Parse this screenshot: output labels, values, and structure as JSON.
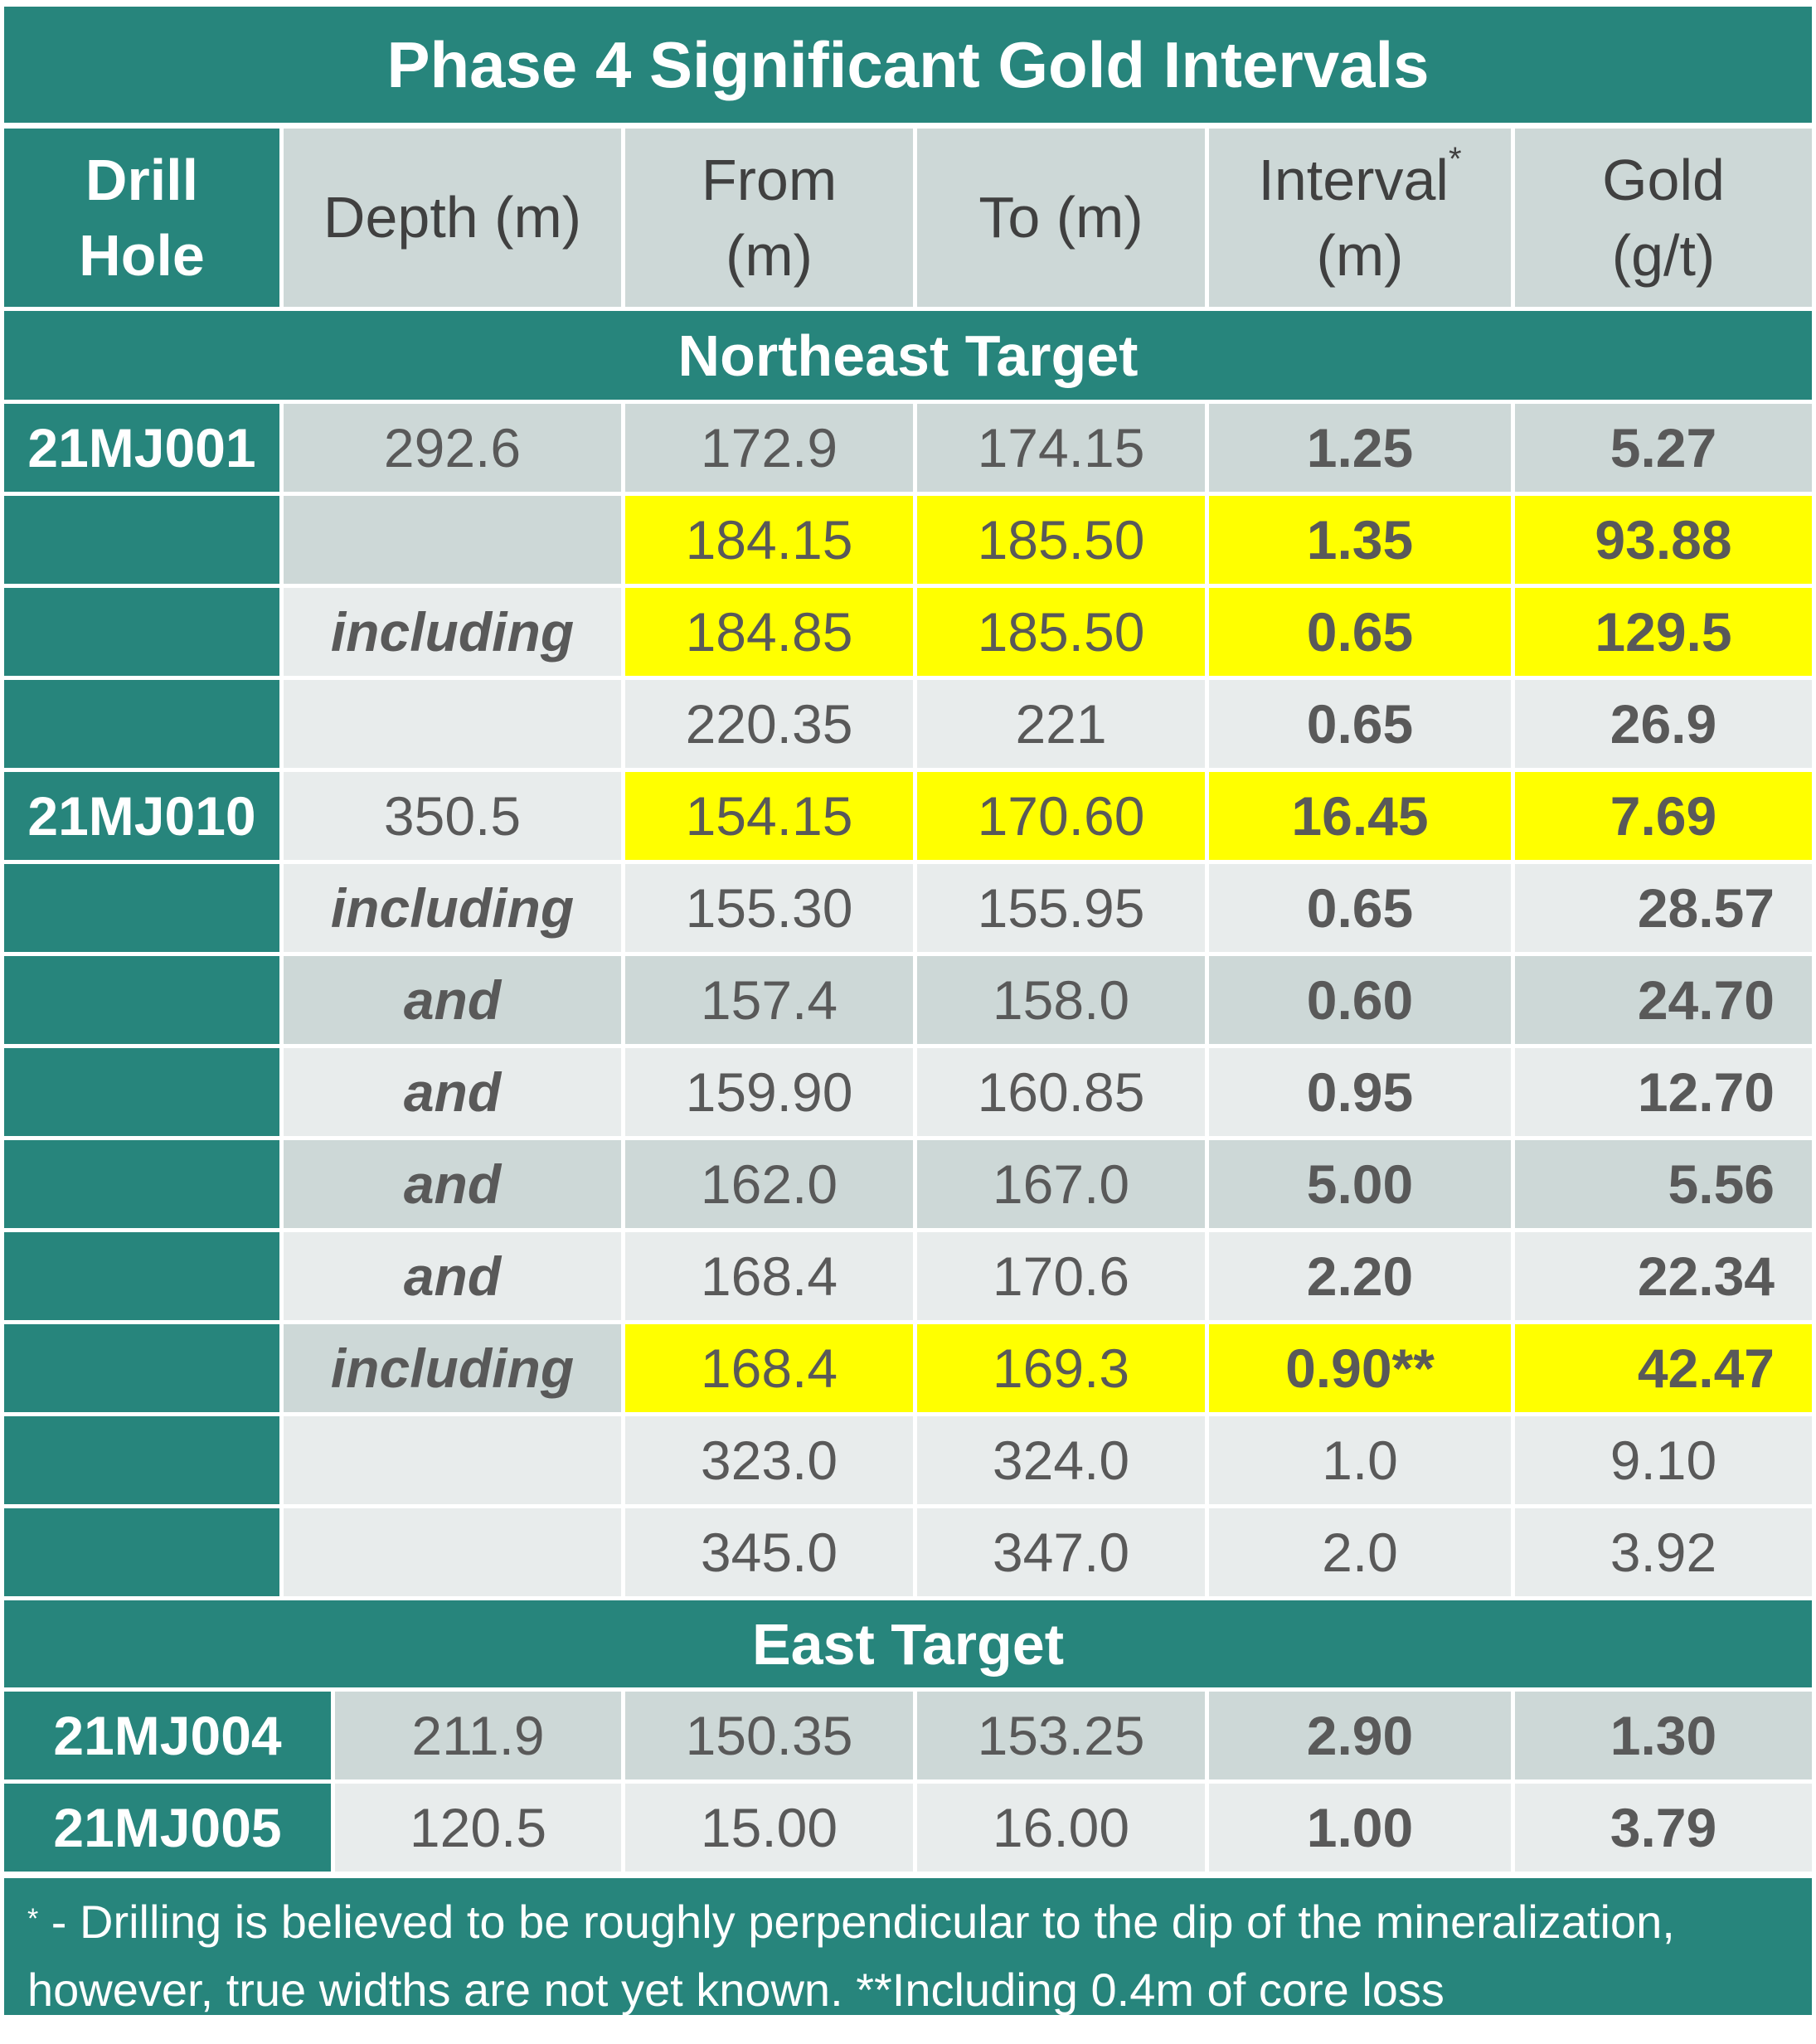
{
  "title": "Phase 4 Significant Gold Intervals",
  "headers": {
    "drill_hole_1": "Drill",
    "drill_hole_2": "Hole",
    "depth": "Depth (m)",
    "from_1": "From",
    "from_2": "(m)",
    "to": "To (m)",
    "interval_1": "Interval",
    "interval_sup": "*",
    "interval_2": "(m)",
    "gold_1": "Gold",
    "gold_2": "(g/t)"
  },
  "sections": [
    {
      "name": "Northeast Target",
      "rows": [
        {
          "hole": "21MJ001",
          "depth": "292.6",
          "from": "172.9",
          "to": "174.15",
          "interval": "1.25",
          "gold": "5.27"
        },
        {
          "hole": "",
          "depth": "",
          "from": "184.15",
          "to": "185.50",
          "interval": "1.35",
          "gold": "93.88"
        },
        {
          "hole": "",
          "depth": "including",
          "from": "184.85",
          "to": "185.50",
          "interval": "0.65",
          "gold": "129.5"
        },
        {
          "hole": "",
          "depth": "",
          "from": "220.35",
          "to": "221",
          "interval": "0.65",
          "gold": "26.9"
        },
        {
          "hole": "21MJ010",
          "depth": "350.5",
          "from": "154.15",
          "to": "170.60",
          "interval": "16.45",
          "gold": "7.69"
        },
        {
          "hole": "",
          "depth": "including",
          "from": "155.30",
          "to": "155.95",
          "interval": "0.65",
          "gold": "28.57"
        },
        {
          "hole": "",
          "depth": "and",
          "from": "157.4",
          "to": "158.0",
          "interval": "0.60",
          "gold": "24.70"
        },
        {
          "hole": "",
          "depth": "and",
          "from": "159.90",
          "to": "160.85",
          "interval": "0.95",
          "gold": "12.70"
        },
        {
          "hole": "",
          "depth": "and",
          "from": "162.0",
          "to": "167.0",
          "interval": "5.00",
          "gold": "5.56"
        },
        {
          "hole": "",
          "depth": "and",
          "from": "168.4",
          "to": "170.6",
          "interval": "2.20",
          "gold": "22.34"
        },
        {
          "hole": "",
          "depth": "including",
          "from": "168.4",
          "to": "169.3",
          "interval": "0.90**",
          "gold": "42.47"
        },
        {
          "hole": "",
          "depth": "",
          "from": "323.0",
          "to": "324.0",
          "interval": "1.0",
          "gold": "9.10"
        },
        {
          "hole": "",
          "depth": "",
          "from": "345.0",
          "to": "347.0",
          "interval": "2.0",
          "gold": "3.92"
        }
      ]
    },
    {
      "name": "East Target",
      "rows": [
        {
          "hole": "21MJ004",
          "depth": "211.9",
          "from": "150.35",
          "to": "153.25",
          "interval": "2.90",
          "gold": "1.30"
        },
        {
          "hole": "21MJ005",
          "depth": "120.5",
          "from": "15.00",
          "to": "16.00",
          "interval": "1.00",
          "gold": "3.79"
        }
      ]
    }
  ],
  "footnote": {
    "marker": "*",
    "line1": " - Drilling is believed to be roughly perpendicular to the dip of the mineralization,",
    "line2": "however, true widths are not yet known. **Including 0.4m of core loss"
  },
  "colors": {
    "teal": "#27857c",
    "gray_dark": "#cdd8d7",
    "gray_light": "#e8ecec",
    "highlight": "#ffff00",
    "text": "#595959"
  }
}
